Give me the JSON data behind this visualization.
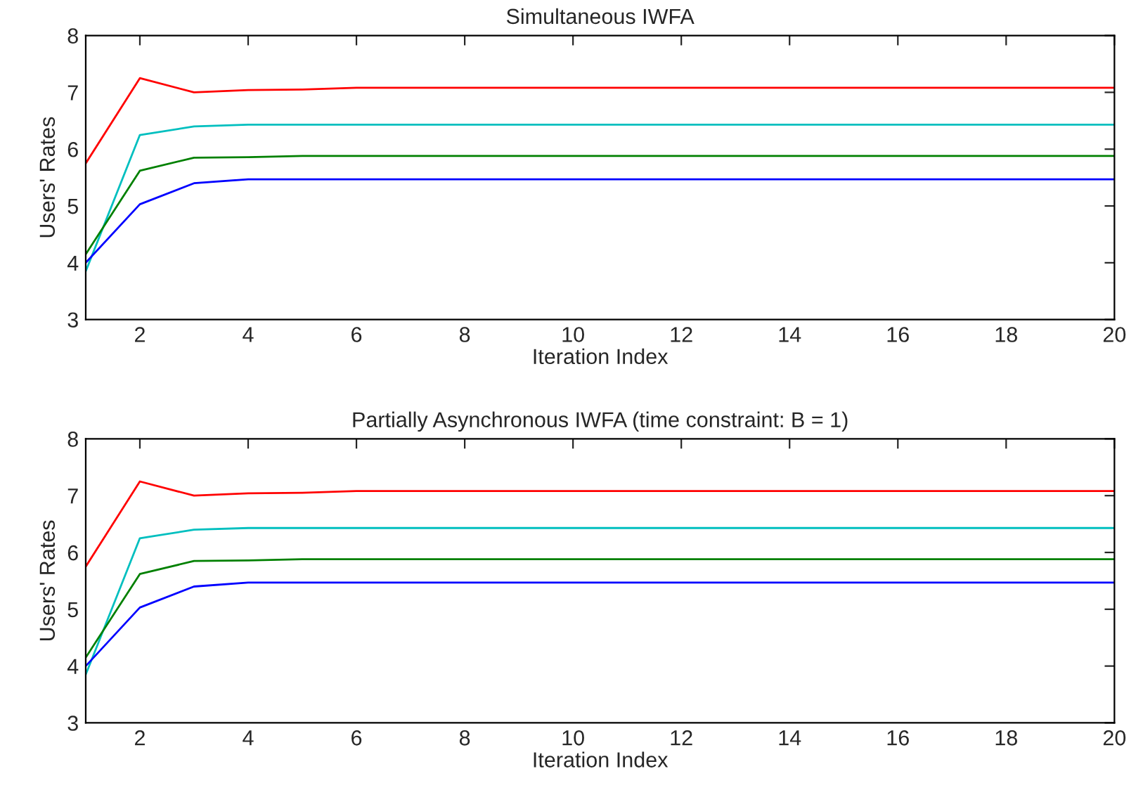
{
  "chart_data": [
    {
      "type": "line",
      "title": "Simultaneous IWFA",
      "xlabel": "Iteration Index",
      "ylabel": "Users' Rates",
      "x": [
        1,
        2,
        3,
        4,
        5,
        6,
        7,
        8,
        9,
        10,
        11,
        12,
        13,
        14,
        15,
        16,
        17,
        18,
        19,
        20
      ],
      "series": [
        {
          "color": "#ff0000",
          "values": [
            5.75,
            7.25,
            7.0,
            7.04,
            7.05,
            7.08,
            7.08,
            7.08,
            7.08,
            7.08,
            7.08,
            7.08,
            7.08,
            7.08,
            7.08,
            7.08,
            7.08,
            7.08,
            7.08,
            7.08
          ]
        },
        {
          "color": "#00bfbf",
          "values": [
            3.85,
            6.25,
            6.4,
            6.43,
            6.43,
            6.43,
            6.43,
            6.43,
            6.43,
            6.43,
            6.43,
            6.43,
            6.43,
            6.43,
            6.43,
            6.43,
            6.43,
            6.43,
            6.43,
            6.43
          ]
        },
        {
          "color": "#008000",
          "values": [
            4.15,
            5.62,
            5.85,
            5.86,
            5.88,
            5.88,
            5.88,
            5.88,
            5.88,
            5.88,
            5.88,
            5.88,
            5.88,
            5.88,
            5.88,
            5.88,
            5.88,
            5.88,
            5.88,
            5.88
          ]
        },
        {
          "color": "#0000ff",
          "values": [
            4.0,
            5.03,
            5.4,
            5.47,
            5.47,
            5.47,
            5.47,
            5.47,
            5.47,
            5.47,
            5.47,
            5.47,
            5.47,
            5.47,
            5.47,
            5.47,
            5.47,
            5.47,
            5.47,
            5.47
          ]
        }
      ],
      "xlim": [
        1,
        20
      ],
      "xticks": [
        2,
        4,
        6,
        8,
        10,
        12,
        14,
        16,
        18,
        20
      ],
      "ylim": [
        3,
        8
      ],
      "yticks": [
        3,
        4,
        5,
        6,
        7,
        8
      ]
    },
    {
      "type": "line",
      "title": "Partially Asynchronous IWFA (time constraint: B = 1)",
      "xlabel": "Iteration Index",
      "ylabel": "Users' Rates",
      "x": [
        1,
        2,
        3,
        4,
        5,
        6,
        7,
        8,
        9,
        10,
        11,
        12,
        13,
        14,
        15,
        16,
        17,
        18,
        19,
        20
      ],
      "series": [
        {
          "color": "#ff0000",
          "values": [
            5.75,
            7.25,
            7.0,
            7.04,
            7.05,
            7.08,
            7.08,
            7.08,
            7.08,
            7.08,
            7.08,
            7.08,
            7.08,
            7.08,
            7.08,
            7.08,
            7.08,
            7.08,
            7.08,
            7.08
          ]
        },
        {
          "color": "#00bfbf",
          "values": [
            3.85,
            6.25,
            6.4,
            6.43,
            6.43,
            6.43,
            6.43,
            6.43,
            6.43,
            6.43,
            6.43,
            6.43,
            6.43,
            6.43,
            6.43,
            6.43,
            6.43,
            6.43,
            6.43,
            6.43
          ]
        },
        {
          "color": "#008000",
          "values": [
            4.15,
            5.62,
            5.85,
            5.86,
            5.88,
            5.88,
            5.88,
            5.88,
            5.88,
            5.88,
            5.88,
            5.88,
            5.88,
            5.88,
            5.88,
            5.88,
            5.88,
            5.88,
            5.88,
            5.88
          ]
        },
        {
          "color": "#0000ff",
          "values": [
            4.0,
            5.03,
            5.4,
            5.47,
            5.47,
            5.47,
            5.47,
            5.47,
            5.47,
            5.47,
            5.47,
            5.47,
            5.47,
            5.47,
            5.47,
            5.47,
            5.47,
            5.47,
            5.47,
            5.47
          ]
        }
      ],
      "xlim": [
        1,
        20
      ],
      "xticks": [
        2,
        4,
        6,
        8,
        10,
        12,
        14,
        16,
        18,
        20
      ],
      "ylim": [
        3,
        8
      ],
      "yticks": [
        3,
        4,
        5,
        6,
        7,
        8
      ]
    }
  ]
}
